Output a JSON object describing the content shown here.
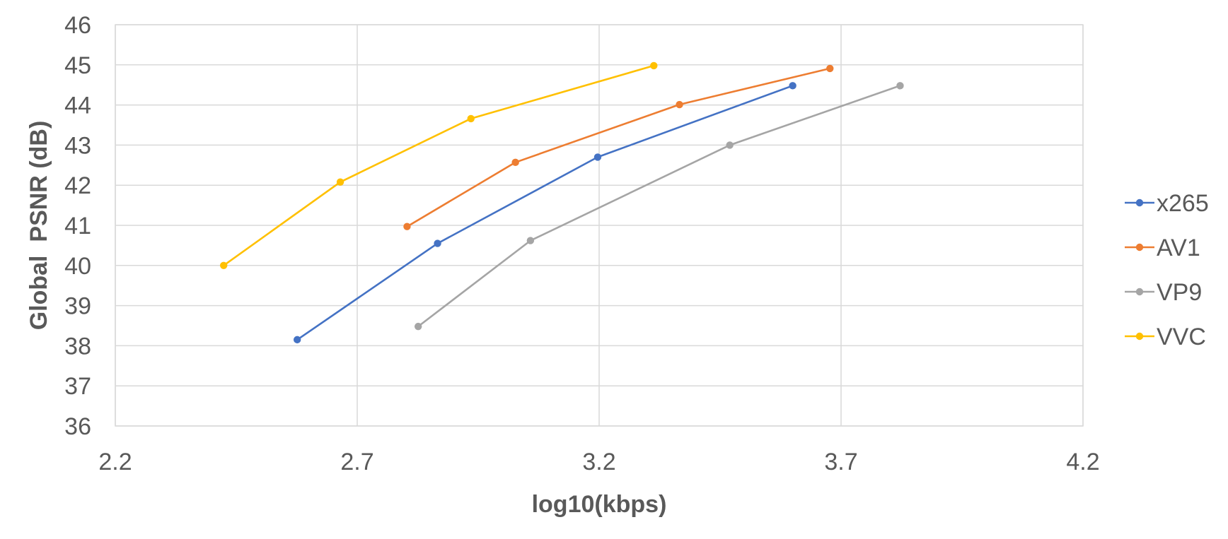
{
  "chart_data": {
    "type": "line",
    "title": "",
    "xlabel": "log10(kbps)",
    "ylabel": "Global  PSNR (dB)",
    "xlim": [
      2.2,
      4.2
    ],
    "ylim": [
      36,
      46
    ],
    "x_ticks": [
      "2.2",
      "2.7",
      "3.2",
      "3.7",
      "4.2"
    ],
    "y_ticks": [
      "36",
      "37",
      "38",
      "39",
      "40",
      "41",
      "42",
      "43",
      "44",
      "45",
      "46"
    ],
    "grid": true,
    "legend_position": "right",
    "series": [
      {
        "name": "x265",
        "color": "#4472C4",
        "points": [
          [
            2.576,
            38.15
          ],
          [
            2.866,
            40.55
          ],
          [
            3.197,
            42.7
          ],
          [
            3.6,
            44.48
          ]
        ]
      },
      {
        "name": "AV1",
        "color": "#ED7D31",
        "points": [
          [
            2.803,
            40.97
          ],
          [
            3.027,
            42.57
          ],
          [
            3.366,
            44.01
          ],
          [
            3.677,
            44.91
          ]
        ]
      },
      {
        "name": "VP9",
        "color": "#A5A5A5",
        "points": [
          [
            2.826,
            38.48
          ],
          [
            3.058,
            40.62
          ],
          [
            3.47,
            43.0
          ],
          [
            3.822,
            44.48
          ]
        ]
      },
      {
        "name": "VVC",
        "color": "#FFC000",
        "points": [
          [
            2.424,
            40.0
          ],
          [
            2.665,
            42.08
          ],
          [
            2.935,
            43.66
          ],
          [
            3.313,
            44.98
          ]
        ]
      }
    ]
  }
}
